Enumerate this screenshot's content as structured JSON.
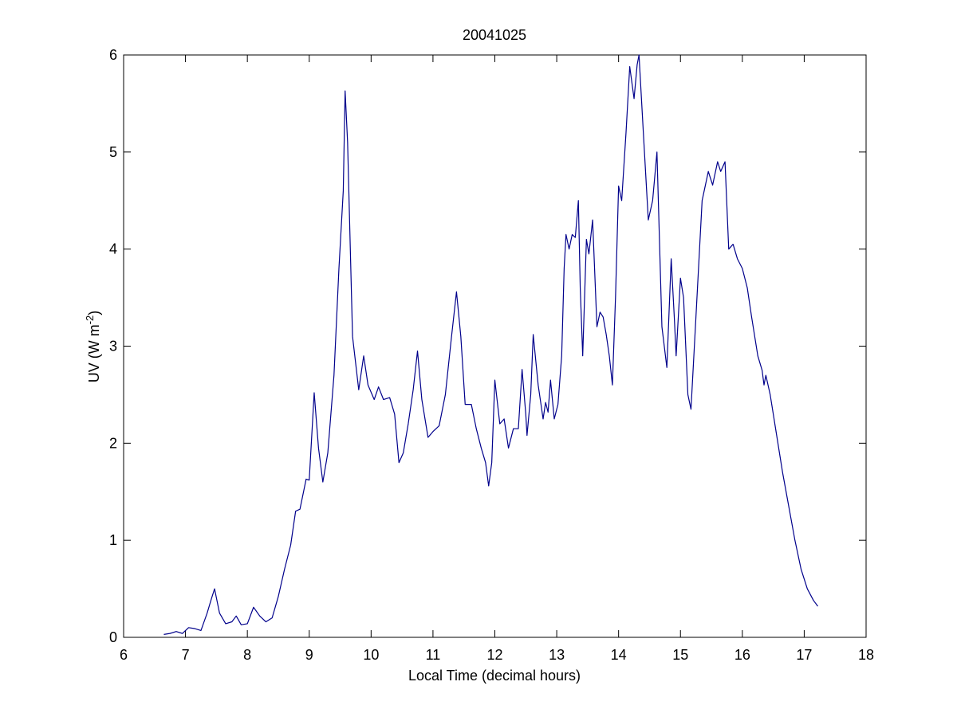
{
  "chart_data": {
    "type": "line",
    "title": "20041025",
    "xlabel": "Local Time (decimal hours)",
    "ylabel_parts": [
      "UV (W m",
      "-2",
      ")"
    ],
    "xlim": [
      6,
      18
    ],
    "xticks": [
      6,
      7,
      8,
      9,
      10,
      11,
      12,
      13,
      14,
      15,
      16,
      17,
      18
    ],
    "ylim": [
      0,
      6
    ],
    "yticks": [
      0,
      1,
      2,
      3,
      4,
      5,
      6
    ],
    "grid": false,
    "series": [
      {
        "color": "#00008b",
        "x": [
          6.65,
          6.75,
          6.85,
          6.95,
          7.05,
          7.15,
          7.25,
          7.35,
          7.42,
          7.47,
          7.55,
          7.65,
          7.75,
          7.82,
          7.9,
          8.0,
          8.1,
          8.2,
          8.3,
          8.4,
          8.5,
          8.6,
          8.7,
          8.78,
          8.85,
          8.95,
          9.0,
          9.08,
          9.15,
          9.22,
          9.3,
          9.4,
          9.48,
          9.55,
          9.58,
          9.62,
          9.7,
          9.8,
          9.88,
          9.95,
          10.05,
          10.12,
          10.2,
          10.3,
          10.38,
          10.45,
          10.52,
          10.6,
          10.68,
          10.75,
          10.82,
          10.92,
          11.0,
          11.1,
          11.2,
          11.3,
          11.38,
          11.45,
          11.52,
          11.62,
          11.7,
          11.78,
          11.85,
          11.9,
          11.95,
          12.0,
          12.08,
          12.15,
          12.22,
          12.3,
          12.38,
          12.44,
          12.5,
          12.52,
          12.58,
          12.62,
          12.7,
          12.78,
          12.82,
          12.86,
          12.9,
          12.96,
          13.02,
          13.08,
          13.12,
          13.15,
          13.2,
          13.25,
          13.3,
          13.35,
          13.38,
          13.42,
          13.48,
          13.52,
          13.58,
          13.65,
          13.7,
          13.75,
          13.8,
          13.85,
          13.9,
          13.95,
          14.0,
          14.05,
          14.12,
          14.18,
          14.25,
          14.3,
          14.33,
          14.4,
          14.48,
          14.55,
          14.62,
          14.7,
          14.78,
          14.85,
          14.9,
          14.93,
          15.0,
          15.05,
          15.12,
          15.17,
          15.25,
          15.35,
          15.45,
          15.52,
          15.6,
          15.65,
          15.72,
          15.78,
          15.85,
          15.92,
          16.0,
          16.08,
          16.15,
          16.25,
          16.32,
          16.35,
          16.38,
          16.45,
          16.55,
          16.65,
          16.75,
          16.85,
          16.95,
          17.05,
          17.15,
          17.22
        ],
        "values": [
          0.03,
          0.04,
          0.06,
          0.04,
          0.1,
          0.09,
          0.07,
          0.25,
          0.4,
          0.5,
          0.25,
          0.14,
          0.16,
          0.22,
          0.13,
          0.14,
          0.31,
          0.22,
          0.16,
          0.2,
          0.42,
          0.7,
          0.95,
          1.3,
          1.32,
          1.63,
          1.62,
          2.52,
          1.95,
          1.6,
          1.9,
          2.7,
          3.8,
          4.6,
          5.63,
          5.1,
          3.1,
          2.55,
          2.9,
          2.6,
          2.45,
          2.58,
          2.45,
          2.47,
          2.3,
          1.8,
          1.9,
          2.2,
          2.55,
          2.95,
          2.45,
          2.06,
          2.12,
          2.18,
          2.5,
          3.1,
          3.56,
          3.1,
          2.4,
          2.4,
          2.15,
          1.95,
          1.8,
          1.56,
          1.8,
          2.65,
          2.2,
          2.25,
          1.95,
          2.15,
          2.15,
          2.76,
          2.3,
          2.08,
          2.5,
          3.12,
          2.6,
          2.25,
          2.42,
          2.32,
          2.65,
          2.25,
          2.4,
          2.9,
          3.8,
          4.15,
          4.0,
          4.15,
          4.12,
          4.5,
          3.6,
          2.9,
          4.1,
          3.95,
          4.3,
          3.2,
          3.35,
          3.3,
          3.12,
          2.9,
          2.6,
          3.5,
          4.65,
          4.5,
          5.2,
          5.88,
          5.55,
          5.9,
          6.0,
          5.2,
          4.3,
          4.5,
          5.0,
          3.2,
          2.78,
          3.9,
          3.3,
          2.9,
          3.7,
          3.5,
          2.5,
          2.35,
          3.3,
          4.5,
          4.8,
          4.66,
          4.9,
          4.8,
          4.9,
          4.0,
          4.05,
          3.9,
          3.8,
          3.6,
          3.3,
          2.9,
          2.75,
          2.6,
          2.7,
          2.5,
          2.1,
          1.7,
          1.35,
          1.0,
          0.7,
          0.5,
          0.38,
          0.32
        ]
      }
    ]
  }
}
